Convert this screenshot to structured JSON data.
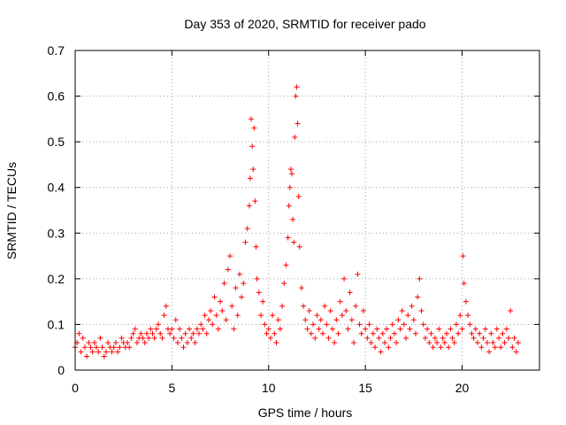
{
  "chart_data": {
    "type": "scatter",
    "title": "Day 353 of 2020, SRMTID for receiver pado",
    "xlabel": "GPS time / hours",
    "ylabel": "SRMTID / TECUs",
    "xlim": [
      0,
      24
    ],
    "ylim": [
      0,
      0.7
    ],
    "xticks": [
      0,
      5,
      10,
      15,
      20
    ],
    "xtick_labels": [
      "0",
      "5",
      "10",
      "15",
      "20"
    ],
    "yticks": [
      0,
      0.1,
      0.2,
      0.3,
      0.4,
      0.5,
      0.6,
      0.7
    ],
    "ytick_labels": [
      "0",
      "0.1",
      "0.2",
      "0.3",
      "0.4",
      "0.5",
      "0.6",
      "0.7"
    ],
    "grid": true,
    "marker": "+",
    "color": "#ff0000",
    "series": [
      {
        "name": "SRMTID",
        "points": [
          [
            0.0,
            0.05
          ],
          [
            0.1,
            0.06
          ],
          [
            0.2,
            0.08
          ],
          [
            0.3,
            0.04
          ],
          [
            0.4,
            0.07
          ],
          [
            0.5,
            0.05
          ],
          [
            0.6,
            0.03
          ],
          [
            0.7,
            0.06
          ],
          [
            0.8,
            0.05
          ],
          [
            0.9,
            0.04
          ],
          [
            1.0,
            0.06
          ],
          [
            1.1,
            0.05
          ],
          [
            1.2,
            0.04
          ],
          [
            1.3,
            0.07
          ],
          [
            1.4,
            0.05
          ],
          [
            1.5,
            0.03
          ],
          [
            1.6,
            0.04
          ],
          [
            1.7,
            0.06
          ],
          [
            1.8,
            0.05
          ],
          [
            1.9,
            0.04
          ],
          [
            2.0,
            0.05
          ],
          [
            2.1,
            0.06
          ],
          [
            2.2,
            0.04
          ],
          [
            2.3,
            0.05
          ],
          [
            2.4,
            0.07
          ],
          [
            2.5,
            0.06
          ],
          [
            2.6,
            0.05
          ],
          [
            2.7,
            0.06
          ],
          [
            2.8,
            0.05
          ],
          [
            2.9,
            0.07
          ],
          [
            3.0,
            0.08
          ],
          [
            3.1,
            0.09
          ],
          [
            3.2,
            0.06
          ],
          [
            3.3,
            0.07
          ],
          [
            3.4,
            0.08
          ],
          [
            3.5,
            0.07
          ],
          [
            3.6,
            0.06
          ],
          [
            3.7,
            0.08
          ],
          [
            3.8,
            0.07
          ],
          [
            3.9,
            0.09
          ],
          [
            4.0,
            0.08
          ],
          [
            4.1,
            0.07
          ],
          [
            4.2,
            0.09
          ],
          [
            4.3,
            0.1
          ],
          [
            4.4,
            0.08
          ],
          [
            4.5,
            0.07
          ],
          [
            4.6,
            0.12
          ],
          [
            4.7,
            0.14
          ],
          [
            4.8,
            0.09
          ],
          [
            4.9,
            0.08
          ],
          [
            5.0,
            0.09
          ],
          [
            5.1,
            0.07
          ],
          [
            5.2,
            0.11
          ],
          [
            5.3,
            0.06
          ],
          [
            5.4,
            0.09
          ],
          [
            5.5,
            0.07
          ],
          [
            5.6,
            0.05
          ],
          [
            5.7,
            0.08
          ],
          [
            5.8,
            0.06
          ],
          [
            5.9,
            0.09
          ],
          [
            6.0,
            0.07
          ],
          [
            6.1,
            0.08
          ],
          [
            6.2,
            0.06
          ],
          [
            6.3,
            0.09
          ],
          [
            6.4,
            0.08
          ],
          [
            6.5,
            0.1
          ],
          [
            6.6,
            0.09
          ],
          [
            6.7,
            0.12
          ],
          [
            6.8,
            0.08
          ],
          [
            6.9,
            0.11
          ],
          [
            7.0,
            0.13
          ],
          [
            7.1,
            0.1
          ],
          [
            7.2,
            0.16
          ],
          [
            7.3,
            0.12
          ],
          [
            7.4,
            0.09
          ],
          [
            7.5,
            0.15
          ],
          [
            7.6,
            0.13
          ],
          [
            7.7,
            0.19
          ],
          [
            7.8,
            0.11
          ],
          [
            7.9,
            0.22
          ],
          [
            8.0,
            0.25
          ],
          [
            8.1,
            0.14
          ],
          [
            8.2,
            0.09
          ],
          [
            8.3,
            0.18
          ],
          [
            8.4,
            0.12
          ],
          [
            8.5,
            0.21
          ],
          [
            8.6,
            0.16
          ],
          [
            8.7,
            0.19
          ],
          [
            8.8,
            0.28
          ],
          [
            8.9,
            0.31
          ],
          [
            9.0,
            0.36
          ],
          [
            9.05,
            0.42
          ],
          [
            9.1,
            0.55
          ],
          [
            9.15,
            0.49
          ],
          [
            9.2,
            0.44
          ],
          [
            9.25,
            0.53
          ],
          [
            9.3,
            0.37
          ],
          [
            9.35,
            0.27
          ],
          [
            9.4,
            0.2
          ],
          [
            9.5,
            0.17
          ],
          [
            9.6,
            0.12
          ],
          [
            9.7,
            0.15
          ],
          [
            9.8,
            0.1
          ],
          [
            9.9,
            0.08
          ],
          [
            10.0,
            0.09
          ],
          [
            10.1,
            0.07
          ],
          [
            10.2,
            0.12
          ],
          [
            10.3,
            0.08
          ],
          [
            10.4,
            0.06
          ],
          [
            10.5,
            0.11
          ],
          [
            10.6,
            0.09
          ],
          [
            10.7,
            0.14
          ],
          [
            10.8,
            0.19
          ],
          [
            10.9,
            0.23
          ],
          [
            11.0,
            0.29
          ],
          [
            11.05,
            0.36
          ],
          [
            11.1,
            0.4
          ],
          [
            11.15,
            0.44
          ],
          [
            11.2,
            0.43
          ],
          [
            11.25,
            0.33
          ],
          [
            11.3,
            0.28
          ],
          [
            11.35,
            0.51
          ],
          [
            11.4,
            0.6
          ],
          [
            11.45,
            0.62
          ],
          [
            11.5,
            0.54
          ],
          [
            11.55,
            0.38
          ],
          [
            11.6,
            0.27
          ],
          [
            11.7,
            0.18
          ],
          [
            11.8,
            0.14
          ],
          [
            11.9,
            0.11
          ],
          [
            12.0,
            0.09
          ],
          [
            12.1,
            0.13
          ],
          [
            12.2,
            0.08
          ],
          [
            12.3,
            0.1
          ],
          [
            12.4,
            0.07
          ],
          [
            12.5,
            0.12
          ],
          [
            12.6,
            0.09
          ],
          [
            12.7,
            0.11
          ],
          [
            12.8,
            0.08
          ],
          [
            12.9,
            0.14
          ],
          [
            13.0,
            0.1
          ],
          [
            13.1,
            0.07
          ],
          [
            13.2,
            0.13
          ],
          [
            13.3,
            0.09
          ],
          [
            13.4,
            0.06
          ],
          [
            13.5,
            0.11
          ],
          [
            13.6,
            0.08
          ],
          [
            13.7,
            0.15
          ],
          [
            13.8,
            0.12
          ],
          [
            13.9,
            0.2
          ],
          [
            14.0,
            0.13
          ],
          [
            14.1,
            0.09
          ],
          [
            14.2,
            0.17
          ],
          [
            14.3,
            0.11
          ],
          [
            14.4,
            0.06
          ],
          [
            14.5,
            0.14
          ],
          [
            14.6,
            0.21
          ],
          [
            14.7,
            0.1
          ],
          [
            14.8,
            0.08
          ],
          [
            14.9,
            0.13
          ],
          [
            15.0,
            0.09
          ],
          [
            15.1,
            0.07
          ],
          [
            15.2,
            0.1
          ],
          [
            15.3,
            0.06
          ],
          [
            15.4,
            0.08
          ],
          [
            15.5,
            0.05
          ],
          [
            15.6,
            0.09
          ],
          [
            15.7,
            0.07
          ],
          [
            15.8,
            0.04
          ],
          [
            15.9,
            0.08
          ],
          [
            16.0,
            0.06
          ],
          [
            16.1,
            0.09
          ],
          [
            16.2,
            0.05
          ],
          [
            16.3,
            0.07
          ],
          [
            16.4,
            0.1
          ],
          [
            16.5,
            0.08
          ],
          [
            16.6,
            0.06
          ],
          [
            16.7,
            0.11
          ],
          [
            16.8,
            0.09
          ],
          [
            16.9,
            0.13
          ],
          [
            17.0,
            0.1
          ],
          [
            17.1,
            0.07
          ],
          [
            17.2,
            0.12
          ],
          [
            17.3,
            0.09
          ],
          [
            17.4,
            0.14
          ],
          [
            17.5,
            0.11
          ],
          [
            17.6,
            0.08
          ],
          [
            17.7,
            0.16
          ],
          [
            17.8,
            0.2
          ],
          [
            17.9,
            0.13
          ],
          [
            18.0,
            0.1
          ],
          [
            18.1,
            0.07
          ],
          [
            18.2,
            0.09
          ],
          [
            18.3,
            0.06
          ],
          [
            18.4,
            0.08
          ],
          [
            18.5,
            0.05
          ],
          [
            18.6,
            0.07
          ],
          [
            18.7,
            0.06
          ],
          [
            18.8,
            0.09
          ],
          [
            18.9,
            0.05
          ],
          [
            19.0,
            0.07
          ],
          [
            19.1,
            0.06
          ],
          [
            19.2,
            0.08
          ],
          [
            19.3,
            0.05
          ],
          [
            19.4,
            0.09
          ],
          [
            19.5,
            0.07
          ],
          [
            19.6,
            0.06
          ],
          [
            19.7,
            0.1
          ],
          [
            19.8,
            0.08
          ],
          [
            19.9,
            0.12
          ],
          [
            20.0,
            0.09
          ],
          [
            20.05,
            0.25
          ],
          [
            20.1,
            0.19
          ],
          [
            20.2,
            0.15
          ],
          [
            20.3,
            0.12
          ],
          [
            20.4,
            0.1
          ],
          [
            20.5,
            0.08
          ],
          [
            20.6,
            0.07
          ],
          [
            20.7,
            0.09
          ],
          [
            20.8,
            0.06
          ],
          [
            20.9,
            0.08
          ],
          [
            21.0,
            0.05
          ],
          [
            21.1,
            0.07
          ],
          [
            21.2,
            0.09
          ],
          [
            21.3,
            0.06
          ],
          [
            21.4,
            0.04
          ],
          [
            21.5,
            0.08
          ],
          [
            21.6,
            0.06
          ],
          [
            21.7,
            0.05
          ],
          [
            21.8,
            0.09
          ],
          [
            21.9,
            0.07
          ],
          [
            22.0,
            0.05
          ],
          [
            22.1,
            0.08
          ],
          [
            22.2,
            0.06
          ],
          [
            22.3,
            0.09
          ],
          [
            22.4,
            0.07
          ],
          [
            22.5,
            0.13
          ],
          [
            22.6,
            0.05
          ],
          [
            22.7,
            0.07
          ],
          [
            22.8,
            0.04
          ],
          [
            22.9,
            0.06
          ]
        ]
      }
    ]
  }
}
